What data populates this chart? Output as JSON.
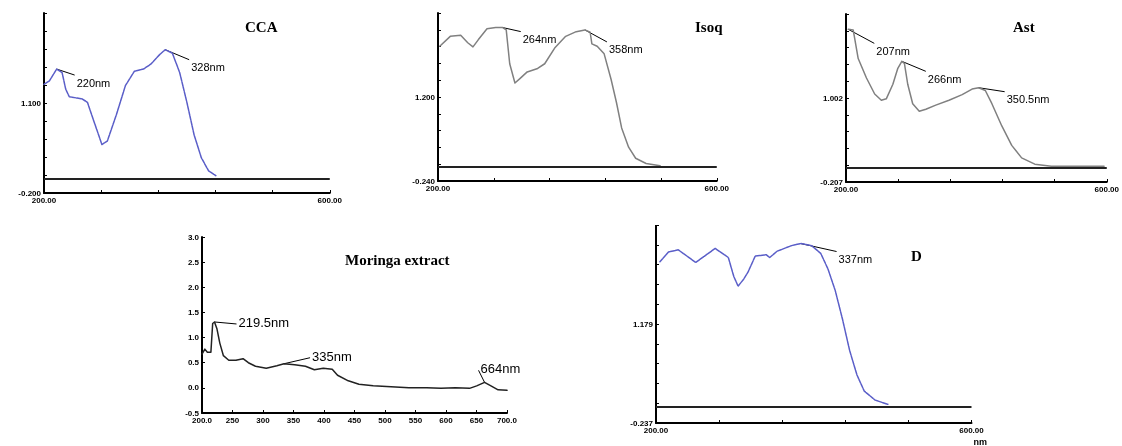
{
  "chart_data": [
    {
      "type": "line",
      "title": "CCA",
      "line_style": "dashed",
      "marker": "none",
      "series": [
        {
          "color": "#5a5ec8",
          "x": [
            200,
            207.6,
            217.7,
            225.3,
            230.4,
            235.4,
            253.2,
            260.8,
            268.4,
            281,
            288.6,
            301.3,
            313.9,
            326.6,
            339.2,
            349.4,
            362,
            369.6,
            379.7,
            389.9,
            400,
            410.1,
            420.2,
            430.4,
            440.5
          ],
          "values": [
            1.37,
            1.42,
            1.59,
            1.54,
            1.3,
            1.19,
            1.16,
            1.11,
            0.88,
            0.5,
            0.55,
            0.93,
            1.35,
            1.56,
            1.59,
            1.66,
            1.8,
            1.87,
            1.82,
            1.54,
            1.11,
            0.64,
            0.31,
            0.12,
            0.05
          ]
        }
      ],
      "xlim": [
        200,
        600
      ],
      "xticks": [
        {
          "value": 200,
          "label": "200.00"
        },
        {
          "value": 280,
          "label": null
        },
        {
          "value": 360,
          "label": null
        },
        {
          "value": 440,
          "label": null
        },
        {
          "value": 520,
          "label": null
        },
        {
          "value": 600,
          "label": "600.00"
        }
      ],
      "ylim": [
        -0.2,
        2.4
      ],
      "yticks": [
        {
          "value": -0.2,
          "label": "-0.200"
        },
        {
          "value": 0.06,
          "label": null
        },
        {
          "value": 0.32,
          "label": null
        },
        {
          "value": 0.58,
          "label": null
        },
        {
          "value": 0.84,
          "label": null
        },
        {
          "value": 1.1,
          "label": "1.100"
        },
        {
          "value": 1.36,
          "label": null
        },
        {
          "value": 1.62,
          "label": null
        },
        {
          "value": 1.88,
          "label": null
        },
        {
          "value": 2.14,
          "label": null
        },
        {
          "value": 2.4,
          "label": null
        }
      ],
      "ref_lines": [
        {
          "axis": "y",
          "value": 0,
          "color": "#222222"
        }
      ],
      "annotations": [
        {
          "text": "220nm",
          "x": 217.7,
          "y": 1.59
        },
        {
          "text": "328nm",
          "x": 369.6,
          "y": 1.87
        }
      ]
    },
    {
      "type": "line",
      "title": "Isoq",
      "line_style": "solid",
      "marker": "none",
      "series": [
        {
          "color": "#808080",
          "x": [
            202.5,
            217.6,
            232.6,
            242.7,
            250.2,
            257.7,
            270.3,
            282.8,
            292.9,
            297.9,
            302.9,
            310.4,
            317.9,
            328,
            343,
            353.1,
            368.1,
            383.2,
            398.3,
            410.8,
            418.3,
            420.8,
            428.4,
            438.4,
            448.4,
            456,
            463.5,
            473.5,
            483.6,
            498.6,
            518.7
          ],
          "values": [
            2.07,
            2.24,
            2.26,
            2.13,
            2.06,
            2.18,
            2.37,
            2.39,
            2.39,
            2.35,
            1.77,
            1.44,
            1.52,
            1.63,
            1.69,
            1.77,
            2.05,
            2.24,
            2.32,
            2.35,
            2.31,
            2.11,
            2.07,
            1.94,
            1.5,
            1.11,
            0.67,
            0.34,
            0.15,
            0.06,
            0.02
          ]
        }
      ],
      "xlim": [
        200,
        600
      ],
      "xticks": [
        {
          "value": 200,
          "label": "200.00"
        },
        {
          "value": 280,
          "label": null
        },
        {
          "value": 360,
          "label": null
        },
        {
          "value": 440,
          "label": null
        },
        {
          "value": 520,
          "label": null
        },
        {
          "value": 600,
          "label": "600.00"
        }
      ],
      "ylim": [
        -0.24,
        2.64
      ],
      "yticks": [
        {
          "value": -0.24,
          "label": "-0.240"
        },
        {
          "value": 0.048,
          "label": null
        },
        {
          "value": 0.336,
          "label": null
        },
        {
          "value": 0.624,
          "label": null
        },
        {
          "value": 0.912,
          "label": null
        },
        {
          "value": 1.2,
          "label": "1.200"
        },
        {
          "value": 1.488,
          "label": null
        },
        {
          "value": 1.776,
          "label": null
        },
        {
          "value": 2.064,
          "label": null
        },
        {
          "value": 2.352,
          "label": null
        },
        {
          "value": 2.64,
          "label": null
        }
      ],
      "ref_lines": [
        {
          "axis": "y",
          "value": 0,
          "color": "#222222"
        }
      ],
      "annotations": [
        {
          "text": "264nm",
          "x": 292.9,
          "y": 2.39
        },
        {
          "text": "358nm",
          "x": 410.8,
          "y": 2.35
        }
      ]
    },
    {
      "type": "line",
      "title": "Ast",
      "line_style": "solid",
      "marker": "none",
      "series": [
        {
          "color": "#808080",
          "x": [
            203.5,
            211.1,
            218.7,
            231.4,
            244,
            254.2,
            261.8,
            271.9,
            279.5,
            285.6,
            289.6,
            294.7,
            302.3,
            312.4,
            322.5,
            337.7,
            358,
            378.2,
            393.4,
            403.5,
            413.7,
            423.8,
            439,
            454.2,
            469.4,
            489.6,
            514.9,
            595.9
          ],
          "values": [
            1.99,
            1.98,
            1.57,
            1.29,
            1.06,
            0.97,
            0.99,
            1.2,
            1.43,
            1.53,
            1.5,
            1.2,
            0.92,
            0.81,
            0.84,
            0.9,
            0.97,
            1.05,
            1.13,
            1.15,
            1.11,
            0.92,
            0.6,
            0.32,
            0.14,
            0.05,
            0.02,
            0.02
          ]
        }
      ],
      "xlim": [
        200,
        600
      ],
      "xticks": [
        {
          "value": 200,
          "label": "200.00"
        },
        {
          "value": 280,
          "label": null
        },
        {
          "value": 360,
          "label": null
        },
        {
          "value": 440,
          "label": null
        },
        {
          "value": 520,
          "label": null
        },
        {
          "value": 600,
          "label": "600.00"
        }
      ],
      "ylim": [
        -0.207,
        2.211
      ],
      "yticks": [
        {
          "value": -0.207,
          "label": "-0.207"
        },
        {
          "value": 0.035,
          "label": null
        },
        {
          "value": 0.277,
          "label": null
        },
        {
          "value": 0.518,
          "label": null
        },
        {
          "value": 0.76,
          "label": null
        },
        {
          "value": 1.002,
          "label": "1.002"
        },
        {
          "value": 1.244,
          "label": null
        },
        {
          "value": 1.486,
          "label": null
        },
        {
          "value": 1.727,
          "label": null
        },
        {
          "value": 1.969,
          "label": null
        },
        {
          "value": 2.211,
          "label": null
        }
      ],
      "ref_lines": [
        {
          "axis": "y",
          "value": 0,
          "color": "#222222"
        }
      ],
      "annotations": [
        {
          "text": "207nm",
          "x": 203.5,
          "y": 1.99
        },
        {
          "text": "266nm",
          "x": 285.6,
          "y": 1.53
        },
        {
          "text": "350.5nm",
          "x": 403.5,
          "y": 1.15
        }
      ]
    },
    {
      "type": "line",
      "title": "Moringa extract",
      "line_style": "solid",
      "marker": "none",
      "series": [
        {
          "color": "#222222",
          "x": [
            200,
            204.7,
            208.8,
            214.6,
            217.5,
            220.5,
            224.6,
            229.2,
            235.1,
            243.9,
            255.6,
            267.3,
            276,
            287.7,
            305.3,
            322.8,
            334.5,
            352,
            369.6,
            384.2,
            398.8,
            413.5,
            422.2,
            439.8,
            457.3,
            480.7,
            509.9,
            539.2,
            568.4,
            591.8,
            615.2,
            638.6,
            650.3,
            663.2,
            673.7,
            685.4,
            700
          ],
          "values": [
            0.67,
            0.77,
            0.71,
            0.71,
            1.28,
            1.31,
            1.17,
            0.89,
            0.64,
            0.55,
            0.55,
            0.58,
            0.5,
            0.43,
            0.39,
            0.44,
            0.48,
            0.46,
            0.43,
            0.36,
            0.39,
            0.37,
            0.25,
            0.14,
            0.07,
            0.04,
            0.02,
            0,
            0,
            -0.01,
            0,
            -0.01,
            0.04,
            0.11,
            0.04,
            -0.04,
            -0.05
          ]
        }
      ],
      "xlim": [
        200,
        700
      ],
      "xticks": [
        {
          "value": 200,
          "label": "200.0"
        },
        250,
        300,
        350,
        400,
        450,
        500,
        550,
        600,
        650,
        {
          "value": 700,
          "label": "700.0"
        }
      ],
      "ylim": [
        -0.5,
        3
      ],
      "yticks": [
        -0.5,
        {
          "value": 0,
          "label": "0.0"
        },
        0.5,
        {
          "value": 1,
          "label": "1.0"
        },
        1.5,
        {
          "value": 2,
          "label": "2.0"
        },
        2.5,
        {
          "value": 3,
          "label": "3.0"
        }
      ],
      "annotations": [
        {
          "text": "219.5nm",
          "x": 220.5,
          "y": 1.31
        },
        {
          "text": "335nm",
          "x": 334.5,
          "y": 0.48
        },
        {
          "text": "664nm",
          "x": 663.2,
          "y": 0.11
        }
      ]
    },
    {
      "type": "line",
      "title": "D",
      "xlabel": "nm",
      "line_style": "dashed",
      "marker": "none",
      "series": [
        {
          "color": "#5a5ec8",
          "x": [
            205,
            215.8,
            228.2,
            240.5,
            250.3,
            260.3,
            275.1,
            291.7,
            298.6,
            304.1,
            311.1,
            316.6,
            325.8,
            339.6,
            344.2,
            353.5,
            371.9,
            383.3,
            397.2,
            408.8,
            417.9,
            427.2,
            436.4,
            445.5,
            454.8,
            464,
            477.9,
            493.9
          ],
          "values": [
            2.07,
            2.21,
            2.24,
            2.14,
            2.06,
            2.14,
            2.26,
            2.13,
            1.86,
            1.72,
            1.82,
            1.92,
            2.15,
            2.17,
            2.13,
            2.22,
            2.3,
            2.33,
            2.3,
            2.19,
            1.97,
            1.66,
            1.25,
            0.8,
            0.45,
            0.22,
            0.09,
            0.03
          ]
        }
      ],
      "xlim": [
        200,
        600
      ],
      "xticks": [
        {
          "value": 200,
          "label": "200.00"
        },
        {
          "value": 280,
          "label": null
        },
        {
          "value": 360,
          "label": null
        },
        {
          "value": 440,
          "label": null
        },
        {
          "value": 520,
          "label": null
        },
        {
          "value": 600,
          "label": "600.00"
        }
      ],
      "ylim": [
        -0.237,
        2.595
      ],
      "yticks": [
        {
          "value": -0.237,
          "label": "-0.237"
        },
        {
          "value": 0.046,
          "label": null
        },
        {
          "value": 0.329,
          "label": null
        },
        {
          "value": 0.613,
          "label": null
        },
        {
          "value": 0.896,
          "label": null
        },
        {
          "value": 1.179,
          "label": "1.179"
        },
        {
          "value": 1.462,
          "label": null
        },
        {
          "value": 1.745,
          "label": null
        },
        {
          "value": 2.029,
          "label": null
        },
        {
          "value": 2.312,
          "label": null
        },
        {
          "value": 2.595,
          "label": null
        }
      ],
      "ref_lines": [
        {
          "axis": "y",
          "value": 0,
          "color": "#222222"
        }
      ],
      "annotations": [
        {
          "text": "337nm",
          "x": 383.3,
          "y": 2.33
        }
      ]
    }
  ]
}
